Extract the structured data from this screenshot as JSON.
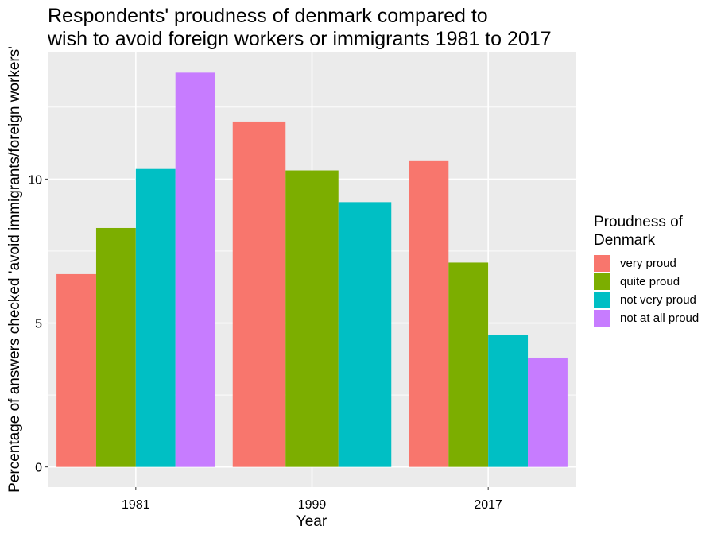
{
  "chart_data": {
    "type": "bar",
    "title_lines": [
      "Respondents' proudness of denmark compared to",
      "wish to avoid foreign workers or immigrants 1981 to 2017"
    ],
    "xlabel": "Year",
    "ylabel": "Percentage of answers checked 'avoid immigrants/foreign workers'",
    "categories": [
      "1981",
      "1999",
      "2017"
    ],
    "y_ticks": [
      0,
      5,
      10
    ],
    "ylim": [
      -0.7,
      14.4
    ],
    "grid": true,
    "legend": {
      "title_lines": [
        "Proudness of",
        "Denmark"
      ],
      "placement": "right"
    },
    "series": [
      {
        "name": "very proud",
        "color": "#F8766D",
        "values": [
          6.7,
          12.0,
          10.65
        ]
      },
      {
        "name": "quite proud",
        "color": "#7CAE00",
        "values": [
          8.3,
          10.3,
          7.1
        ]
      },
      {
        "name": "not very proud",
        "color": "#00BFC4",
        "values": [
          10.35,
          9.2,
          4.6
        ]
      },
      {
        "name": "not at all proud",
        "color": "#C77CFF",
        "values": [
          13.7,
          null,
          3.8
        ]
      }
    ]
  }
}
